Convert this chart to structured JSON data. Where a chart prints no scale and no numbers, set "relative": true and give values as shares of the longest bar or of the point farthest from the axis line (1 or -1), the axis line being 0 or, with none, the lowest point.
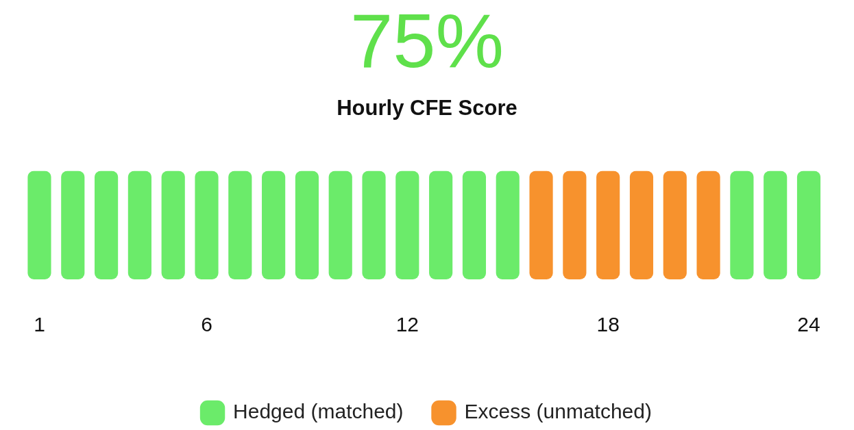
{
  "chart_data": {
    "type": "bar",
    "title": "75%",
    "subtitle": "Hourly CFE Score",
    "relative": true,
    "stacked": true,
    "legend": "bottom",
    "grid": false,
    "categories": [
      "1",
      null,
      null,
      null,
      null,
      "6",
      null,
      null,
      null,
      null,
      null,
      "12",
      null,
      null,
      null,
      null,
      null,
      "18",
      null,
      null,
      null,
      null,
      null,
      "24"
    ],
    "series": [
      {
        "name": "Hedged (matched)",
        "color": "#6beb6a",
        "values": [
          1,
          1,
          1,
          1,
          1,
          1,
          1,
          1,
          1,
          1,
          1,
          1,
          1,
          1,
          1,
          null,
          null,
          null,
          null,
          null,
          null,
          1,
          1,
          1
        ]
      },
      {
        "name": "Excess (unmatched)",
        "color": "#f7922d",
        "values": [
          null,
          null,
          null,
          null,
          null,
          null,
          null,
          null,
          null,
          null,
          null,
          null,
          null,
          null,
          null,
          1,
          1,
          1,
          1,
          1,
          1,
          null,
          null,
          null
        ]
      }
    ]
  }
}
